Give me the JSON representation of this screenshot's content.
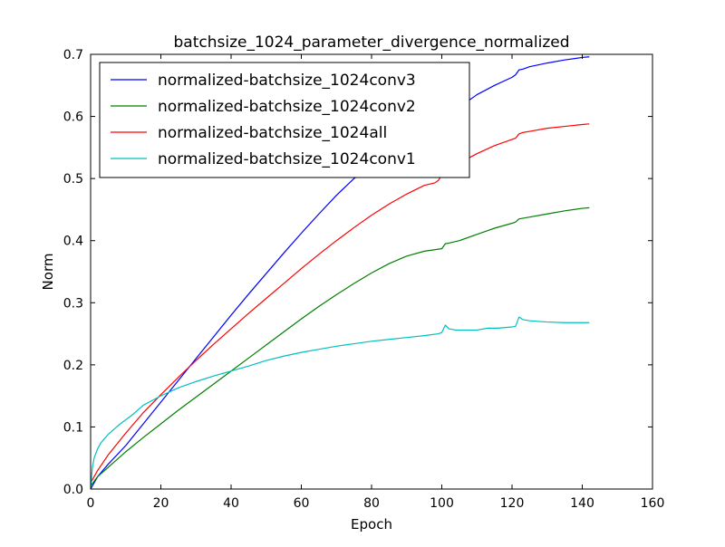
{
  "chart_data": {
    "type": "line",
    "title": "batchsize_1024_parameter_divergence_normalized",
    "xlabel": "Epoch",
    "ylabel": "Norm",
    "xlim": [
      0,
      160
    ],
    "ylim": [
      0.0,
      0.7
    ],
    "xticks": [
      0,
      20,
      40,
      60,
      80,
      100,
      120,
      140,
      160
    ],
    "yticks": [
      0.0,
      0.1,
      0.2,
      0.3,
      0.4,
      0.5,
      0.6,
      0.7
    ],
    "xtick_labels": [
      "0",
      "20",
      "40",
      "60",
      "80",
      "100",
      "120",
      "140",
      "160"
    ],
    "ytick_labels": [
      "0.0",
      "0.1",
      "0.2",
      "0.3",
      "0.4",
      "0.5",
      "0.6",
      "0.7"
    ],
    "grid": false,
    "legend_position": "top-left",
    "series": [
      {
        "name": "normalized-batchsize_1024conv3",
        "color": "#0000ff",
        "x": [
          0,
          2,
          5,
          10,
          15,
          20,
          25,
          30,
          35,
          40,
          45,
          50,
          55,
          60,
          65,
          70,
          75,
          80,
          85,
          90,
          95,
          100,
          101,
          102,
          105,
          110,
          115,
          120,
          121,
          122,
          123,
          125,
          130,
          135,
          140,
          142
        ],
        "y": [
          0.0,
          0.02,
          0.04,
          0.07,
          0.105,
          0.14,
          0.175,
          0.21,
          0.245,
          0.28,
          0.314,
          0.347,
          0.38,
          0.412,
          0.443,
          0.473,
          0.5,
          0.518,
          0.532,
          0.548,
          0.563,
          0.585,
          0.6,
          0.602,
          0.615,
          0.635,
          0.65,
          0.663,
          0.667,
          0.675,
          0.676,
          0.68,
          0.686,
          0.691,
          0.695,
          0.696
        ]
      },
      {
        "name": "normalized-batchsize_1024conv2",
        "color": "#008000",
        "x": [
          0,
          2,
          5,
          10,
          15,
          20,
          25,
          30,
          35,
          40,
          45,
          50,
          55,
          60,
          65,
          70,
          75,
          80,
          85,
          90,
          95,
          100,
          101,
          102,
          105,
          110,
          115,
          120,
          121,
          122,
          123,
          125,
          130,
          135,
          140,
          142
        ],
        "y": [
          0.005,
          0.02,
          0.035,
          0.06,
          0.083,
          0.105,
          0.127,
          0.148,
          0.169,
          0.19,
          0.211,
          0.232,
          0.253,
          0.274,
          0.294,
          0.313,
          0.331,
          0.348,
          0.363,
          0.375,
          0.383,
          0.387,
          0.395,
          0.396,
          0.4,
          0.41,
          0.42,
          0.428,
          0.43,
          0.435,
          0.436,
          0.438,
          0.443,
          0.448,
          0.452,
          0.453
        ]
      },
      {
        "name": "normalized-batchsize_1024all",
        "color": "#ff0000",
        "x": [
          0,
          2,
          5,
          10,
          15,
          20,
          25,
          30,
          35,
          40,
          45,
          50,
          55,
          60,
          65,
          70,
          75,
          80,
          85,
          90,
          95,
          98,
          99,
          100,
          105,
          110,
          115,
          120,
          121,
          122,
          123,
          125,
          130,
          135,
          140,
          142
        ],
        "y": [
          0.01,
          0.03,
          0.055,
          0.09,
          0.123,
          0.152,
          0.18,
          0.207,
          0.233,
          0.258,
          0.283,
          0.307,
          0.331,
          0.355,
          0.378,
          0.4,
          0.421,
          0.441,
          0.459,
          0.475,
          0.489,
          0.493,
          0.497,
          0.505,
          0.525,
          0.54,
          0.553,
          0.563,
          0.565,
          0.572,
          0.574,
          0.576,
          0.581,
          0.584,
          0.587,
          0.588
        ]
      },
      {
        "name": "normalized-batchsize_1024conv1",
        "color": "#00bfbf",
        "x": [
          0,
          0.5,
          1,
          2,
          3,
          5,
          8,
          12,
          15,
          20,
          25,
          30,
          35,
          40,
          45,
          50,
          55,
          60,
          65,
          70,
          75,
          80,
          85,
          90,
          95,
          99,
          100,
          101,
          102,
          104,
          107,
          110,
          113,
          116,
          120,
          121,
          122,
          123,
          125,
          130,
          135,
          140,
          142
        ],
        "y": [
          0.0,
          0.035,
          0.05,
          0.065,
          0.075,
          0.088,
          0.103,
          0.12,
          0.135,
          0.15,
          0.163,
          0.173,
          0.182,
          0.19,
          0.198,
          0.207,
          0.214,
          0.22,
          0.225,
          0.23,
          0.234,
          0.238,
          0.241,
          0.244,
          0.247,
          0.25,
          0.252,
          0.264,
          0.258,
          0.256,
          0.256,
          0.256,
          0.259,
          0.259,
          0.261,
          0.262,
          0.277,
          0.273,
          0.271,
          0.269,
          0.268,
          0.268,
          0.268
        ]
      }
    ]
  }
}
